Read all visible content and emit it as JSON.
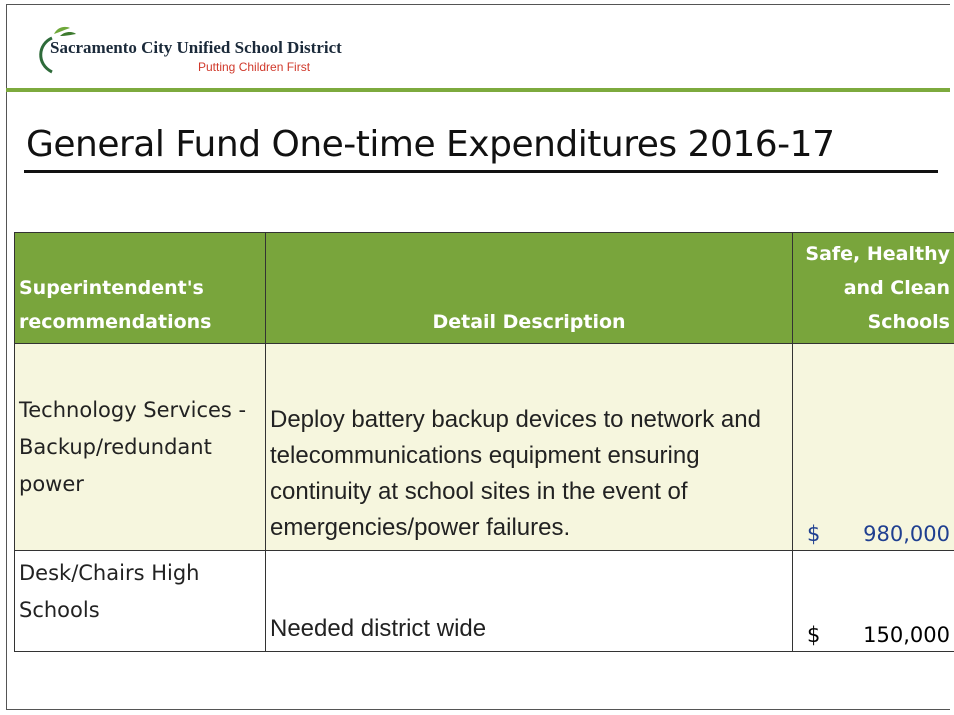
{
  "header": {
    "org": "Sacramento City Unified School District",
    "tagline": "Putting Children First"
  },
  "title": "General Fund One-time Expenditures 2016-17",
  "table": {
    "columns": [
      "Superintendent's recommendations",
      "Detail Description",
      "Safe, Healthy and Clean Schools"
    ],
    "rows": [
      {
        "item": "Technology Services - Backup/redundant power",
        "description": "Deploy battery backup devices to network and telecommunications equipment ensuring continuity at school sites in the event of emergencies/power failures.",
        "currency": "$",
        "amount": "980,000"
      },
      {
        "item": "Desk/Chairs High Schools",
        "description": "Needed district wide",
        "currency": "$",
        "amount": "150,000"
      }
    ]
  }
}
